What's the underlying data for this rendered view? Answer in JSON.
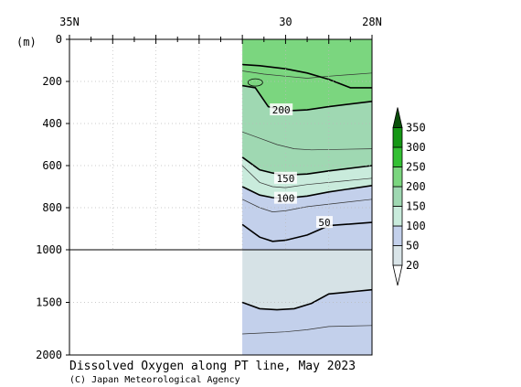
{
  "chart_data": {
    "type": "heatmap",
    "title": "Dissolved Oxygen along PT line, May 2023",
    "credit": "(C) Japan Meteorological Agency",
    "y_unit_label": "(m)",
    "x_top_ticks": [
      {
        "value": 35,
        "label": "35N"
      },
      {
        "value": 30,
        "label": "30"
      },
      {
        "value": 28,
        "label": "28N"
      }
    ],
    "x_range": [
      35,
      28
    ],
    "y_upper_range": [
      0,
      1000
    ],
    "y_lower_range": [
      1000,
      2000
    ],
    "y_ticks": [
      {
        "value": 0,
        "label": "0"
      },
      {
        "value": 200,
        "label": "200"
      },
      {
        "value": 400,
        "label": "400"
      },
      {
        "value": 600,
        "label": "600"
      },
      {
        "value": 800,
        "label": "800"
      },
      {
        "value": 1000,
        "label": "1000"
      },
      {
        "value": 1500,
        "label": "1500"
      },
      {
        "value": 2000,
        "label": "2000"
      }
    ],
    "data_start_lat": 31.0,
    "colorbar": {
      "levels": [
        "20",
        "50",
        "100",
        "150",
        "200",
        "250",
        "300",
        "350"
      ],
      "colors": [
        "#d9e4e8",
        "#c3d0eb",
        "#c9ebdc",
        "#9fd8b2",
        "#7bd67f",
        "#33c033",
        "#159715",
        "#0a4f0a"
      ]
    },
    "fill_colors": {
      "below_50": "#c3d0eb",
      "below_20_deep": "#d6e2e6",
      "50_to_100": "#c3d0eb",
      "100_to_150": "#c9ebdc",
      "150_to_200": "#9fd8b2",
      "200_to_250": "#7bd67f"
    },
    "contours": [
      {
        "label": "200",
        "label_lat": 30.1,
        "label_depth": 335,
        "points": [
          [
            31.0,
            120
          ],
          [
            30.6,
            125
          ],
          [
            30.0,
            140
          ],
          [
            29.5,
            160
          ],
          [
            29.0,
            190
          ],
          [
            28.5,
            230
          ],
          [
            28.0,
            230
          ]
        ],
        "lower_points": [
          [
            31.0,
            220
          ],
          [
            30.7,
            230
          ],
          [
            30.4,
            320
          ],
          [
            30.0,
            340
          ],
          [
            29.5,
            335
          ],
          [
            29.0,
            320
          ],
          [
            28.0,
            295
          ]
        ]
      },
      {
        "label": "150",
        "label_lat": 30.0,
        "label_depth": 660,
        "points": [
          [
            31.0,
            560
          ],
          [
            30.6,
            620
          ],
          [
            30.3,
            635
          ],
          [
            30.0,
            645
          ],
          [
            29.5,
            640
          ],
          [
            29.0,
            625
          ],
          [
            28.0,
            600
          ]
        ]
      },
      {
        "label": "100",
        "label_lat": 30.0,
        "label_depth": 755,
        "points": [
          [
            31.0,
            700
          ],
          [
            30.6,
            740
          ],
          [
            30.3,
            752
          ],
          [
            30.0,
            755
          ],
          [
            29.5,
            745
          ],
          [
            29.0,
            725
          ],
          [
            28.0,
            695
          ]
        ]
      },
      {
        "label": "50",
        "label_lat": 29.1,
        "label_depth": 870,
        "points": [
          [
            31.0,
            880
          ],
          [
            30.6,
            940
          ],
          [
            30.3,
            960
          ],
          [
            30.0,
            955
          ],
          [
            29.5,
            930
          ],
          [
            29.0,
            885
          ],
          [
            28.0,
            870
          ]
        ]
      },
      {
        "label": "",
        "label_lat": 0,
        "label_depth": 0,
        "points": [
          [
            31.0,
            1500
          ],
          [
            30.6,
            1560
          ],
          [
            30.2,
            1570
          ],
          [
            29.8,
            1560
          ],
          [
            29.4,
            1510
          ],
          [
            29.0,
            1420
          ],
          [
            28.5,
            1400
          ],
          [
            28.0,
            1380
          ]
        ]
      }
    ]
  }
}
